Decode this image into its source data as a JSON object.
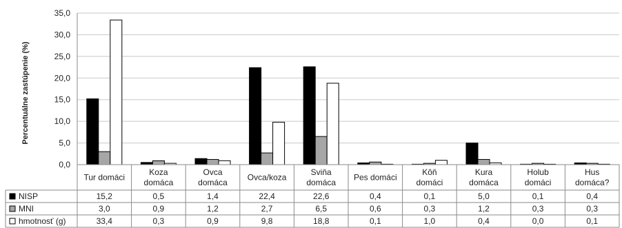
{
  "chart_data": {
    "type": "bar",
    "title": "",
    "ylabel": "Percentuálne zastúpenie (%)",
    "ylim": [
      0,
      35
    ],
    "yticks": [
      "0,0",
      "5,0",
      "10,0",
      "15,0",
      "20,0",
      "25,0",
      "30,0",
      "35,0"
    ],
    "grid": true,
    "legend": "table-left",
    "categories": [
      [
        "Tur domáci"
      ],
      [
        "Koza",
        "domáca"
      ],
      [
        "Ovca",
        "domáca"
      ],
      [
        "Ovca/koza"
      ],
      [
        "Sviňa",
        "domáca"
      ],
      [
        "Pes domáci"
      ],
      [
        "Kôň",
        "domáci"
      ],
      [
        "Kura",
        "domáca"
      ],
      [
        "Holub",
        "domáci"
      ],
      [
        "Hus",
        "domáca?"
      ]
    ],
    "series": [
      {
        "name": "NISP",
        "color": "#000000",
        "values": [
          15.2,
          0.5,
          1.4,
          22.4,
          22.6,
          0.4,
          0.1,
          5.0,
          0.1,
          0.4
        ],
        "labels": [
          "15,2",
          "0,5",
          "1,4",
          "22,4",
          "22,6",
          "0,4",
          "0,1",
          "5,0",
          "0,1",
          "0,4"
        ]
      },
      {
        "name": "MNI",
        "color": "#a6a6a6",
        "values": [
          3.0,
          0.9,
          1.2,
          2.7,
          6.5,
          0.6,
          0.3,
          1.2,
          0.3,
          0.3
        ],
        "labels": [
          "3,0",
          "0,9",
          "1,2",
          "2,7",
          "6,5",
          "0,6",
          "0,3",
          "1,2",
          "0,3",
          "0,3"
        ]
      },
      {
        "name": "hmotnosť (g)",
        "color": "#ffffff",
        "values": [
          33.4,
          0.3,
          0.9,
          9.8,
          18.8,
          0.1,
          1.0,
          0.4,
          0.0,
          0.1
        ],
        "labels": [
          "33,4",
          "0,3",
          "0,9",
          "9,8",
          "18,8",
          "0,1",
          "1,0",
          "0,4",
          "0,0",
          "0,1"
        ]
      }
    ]
  }
}
